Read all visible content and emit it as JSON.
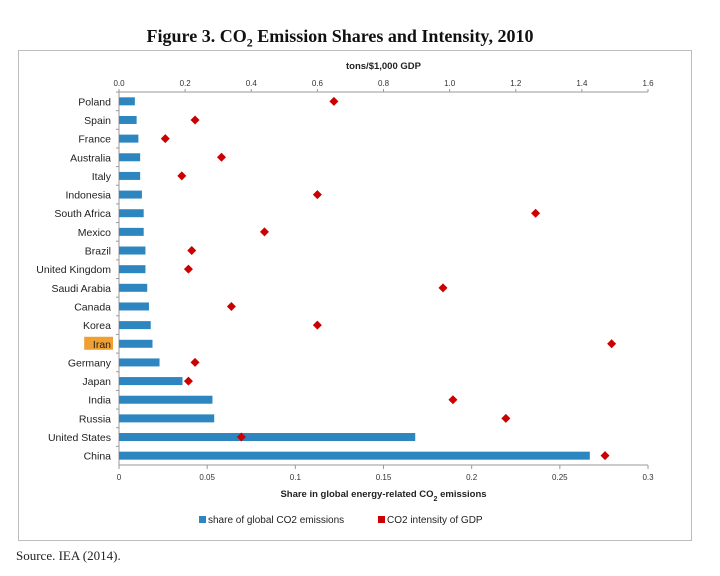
{
  "title_main": "Figure 3. CO",
  "title_sub": "2",
  "title_rest": " Emission Shares and Intensity, 2010",
  "source": "Source. IEA (2014).",
  "colors": {
    "bar": "#2e86c1",
    "marker": "#cc0000",
    "highlight": "#f0a030"
  },
  "chart_data": {
    "type": "bar",
    "orientation": "horizontal",
    "categories": [
      "Poland",
      "Spain",
      "France",
      "Australia",
      "Italy",
      "Indonesia",
      "South Africa",
      "Mexico",
      "Brazil",
      "United Kingdom",
      "Saudi Arabia",
      "Canada",
      "Korea",
      "Iran",
      "Germany",
      "Japan",
      "India",
      "Russia",
      "United States",
      "China"
    ],
    "highlight_category": "Iran",
    "series": [
      {
        "name": "share of global CO2 emissions",
        "kind": "bar",
        "axis": "bottom",
        "values": [
          0.009,
          0.01,
          0.011,
          0.012,
          0.012,
          0.013,
          0.014,
          0.014,
          0.015,
          0.015,
          0.016,
          0.017,
          0.018,
          0.019,
          0.023,
          0.036,
          0.053,
          0.054,
          0.168,
          0.267
        ]
      },
      {
        "name": "CO2 intensity of GDP",
        "kind": "marker",
        "axis": "top",
        "values": [
          0.65,
          0.23,
          0.14,
          0.31,
          0.19,
          0.6,
          1.26,
          0.44,
          0.22,
          0.21,
          0.98,
          0.34,
          0.6,
          1.49,
          0.23,
          0.21,
          1.01,
          1.17,
          0.37,
          1.47
        ]
      }
    ],
    "top_axis": {
      "label": "tons/$1,000 GDP",
      "ticks": [
        "0.0",
        "0.2",
        "0.4",
        "0.6",
        "0.8",
        "1.0",
        "1.2",
        "1.4",
        "1.6"
      ],
      "range": [
        0,
        1.6
      ]
    },
    "bottom_axis": {
      "label_pre": "Share in global energy-related CO",
      "label_sub": "2",
      "label_post": " emissions",
      "ticks": [
        "0",
        "0.05",
        "0.1",
        "0.15",
        "0.2",
        "0.25",
        "0.3"
      ],
      "range": [
        0,
        0.3
      ]
    },
    "legend_position": "bottom",
    "grid": false
  }
}
